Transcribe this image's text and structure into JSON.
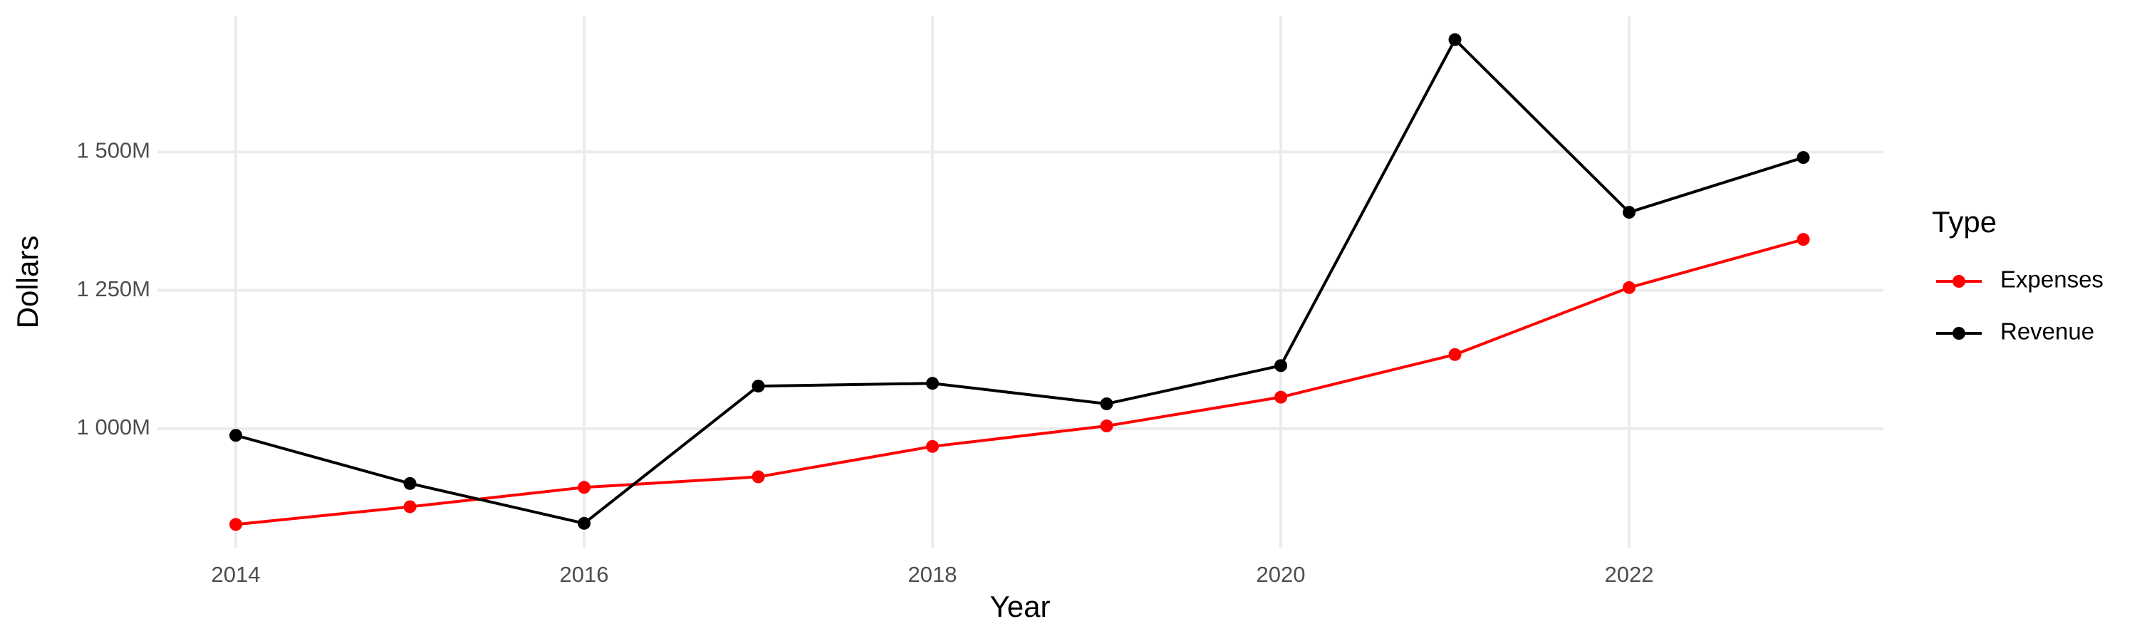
{
  "chart_data": {
    "type": "line",
    "x_label": "Year",
    "y_label": "Dollars",
    "x": [
      2014,
      2015,
      2016,
      2017,
      2018,
      2019,
      2020,
      2021,
      2022,
      2023
    ],
    "series": [
      {
        "name": "Expenses",
        "color": "#ff0000",
        "values": [
          827,
          859,
          894,
          913,
          968,
          1005,
          1057,
          1134,
          1255,
          1342
        ]
      },
      {
        "name": "Revenue",
        "color": "#000000",
        "values": [
          988,
          901,
          829,
          1077,
          1082,
          1045,
          1114,
          1703,
          1391,
          1490
        ]
      }
    ],
    "xlim": [
      2013.55,
      2023.46
    ],
    "xticks": [
      2014,
      2016,
      2018,
      2020,
      2022
    ],
    "ylim": [
      785,
      1745
    ],
    "yticks": [
      {
        "value": 1000,
        "label": "1 000M"
      },
      {
        "value": 1250,
        "label": "1 250M"
      },
      {
        "value": 1500,
        "label": "1 500M"
      }
    ],
    "grid": true,
    "legend_title": "Type",
    "legend_position": "right"
  }
}
